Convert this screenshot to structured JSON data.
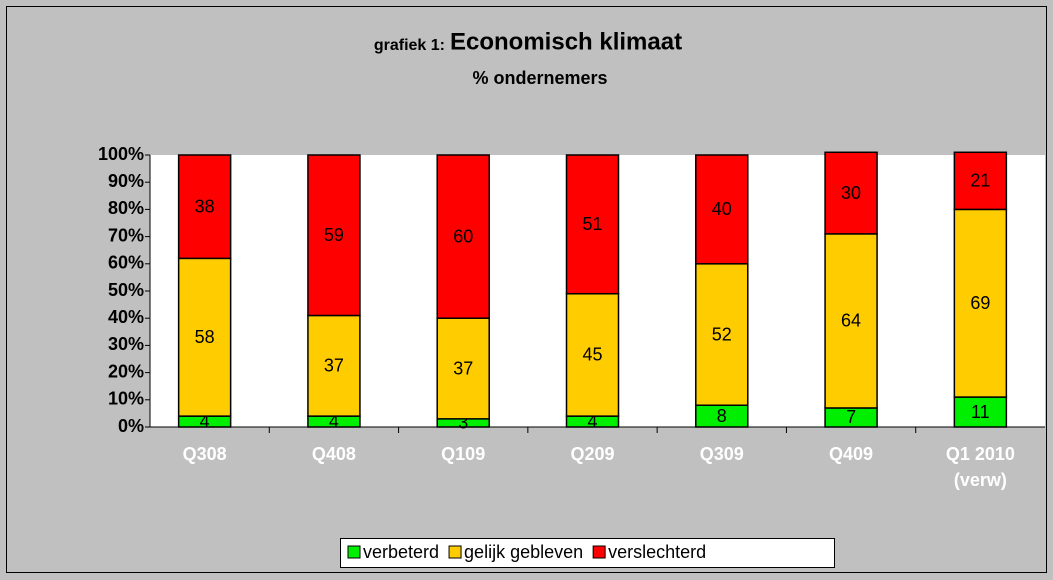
{
  "chart_data": {
    "type": "stacked_bar",
    "title_prefix": "grafiek 1:",
    "title": "Economisch klimaat",
    "subtitle": "% ondernemers",
    "categories": [
      "Q308",
      "Q408",
      "Q109",
      "Q209",
      "Q309",
      "Q409",
      "Q1 2010 (verw)"
    ],
    "series": [
      {
        "name": "verbeterd",
        "color": "#00ee00",
        "values": [
          4,
          4,
          3,
          4,
          8,
          7,
          11
        ]
      },
      {
        "name": "gelijk gebleven",
        "color": "#ffcc00",
        "values": [
          58,
          37,
          37,
          45,
          52,
          64,
          69
        ]
      },
      {
        "name": "verslechterd",
        "color": "#ff0000",
        "values": [
          38,
          59,
          60,
          51,
          40,
          30,
          21
        ]
      }
    ],
    "ylim": [
      0,
      100
    ],
    "yticks": [
      {
        "value": 0,
        "label": "0%"
      },
      {
        "value": 10,
        "label": "10%"
      },
      {
        "value": 20,
        "label": "20%"
      },
      {
        "value": 30,
        "label": "30%"
      },
      {
        "value": 40,
        "label": "40%"
      },
      {
        "value": 50,
        "label": "50%"
      },
      {
        "value": 60,
        "label": "60%"
      },
      {
        "value": 70,
        "label": "70%"
      },
      {
        "value": 80,
        "label": "80%"
      },
      {
        "value": 90,
        "label": "90%"
      },
      {
        "value": 100,
        "label": "100%"
      }
    ],
    "legend": "bottom"
  }
}
